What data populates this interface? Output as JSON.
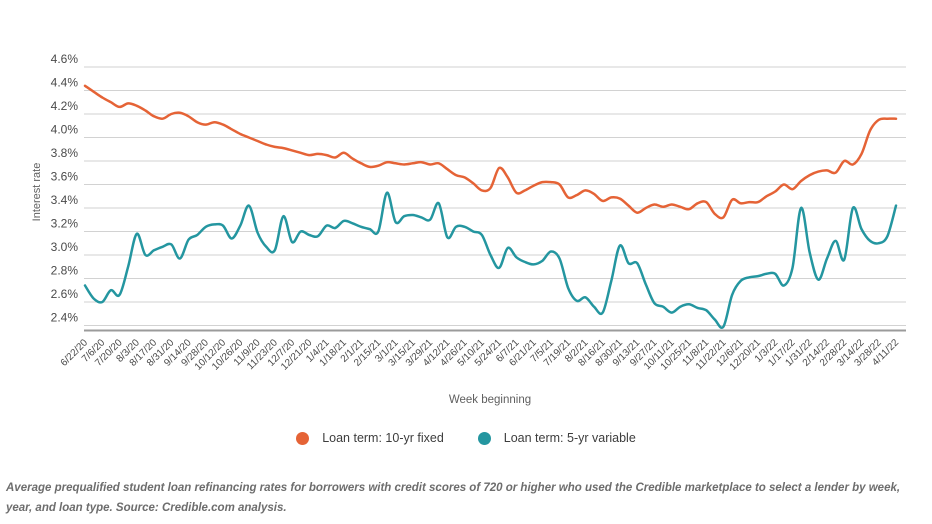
{
  "chart_data": {
    "type": "line",
    "title": "",
    "xlabel": "Week beginning",
    "ylabel": "Interest rate",
    "y_tick_labels": [
      "4.6%",
      "4.4%",
      "4.2%",
      "4.0%",
      "3.8%",
      "3.6%",
      "3.4%",
      "3.2%",
      "3.0%",
      "2.8%",
      "2.6%",
      "2.4%"
    ],
    "y_tick_values": [
      4.6,
      4.4,
      4.2,
      4.0,
      3.8,
      3.6,
      3.4,
      3.2,
      3.0,
      2.8,
      2.6,
      2.4
    ],
    "ylim": [
      2.4,
      4.6
    ],
    "grid": "horizontal",
    "legend_position": "bottom",
    "x_cadence": "weekly points, axis labeled every 2 weeks",
    "x_tick_labels": [
      "6/22/20",
      "7/6/20",
      "7/20/20",
      "8/3/20",
      "8/17/20",
      "8/31/20",
      "9/14/20",
      "9/28/20",
      "10/12/20",
      "10/26/20",
      "11/9/20",
      "11/23/20",
      "12/7/20",
      "12/21/20",
      "1/4/21",
      "1/18/21",
      "2/1/21",
      "2/15/21",
      "3/1/21",
      "3/15/21",
      "3/29/21",
      "4/12/21",
      "4/26/21",
      "5/10/21",
      "5/24/21",
      "6/7/21",
      "6/21/21",
      "7/5/21",
      "7/19/21",
      "8/2/21",
      "8/16/21",
      "8/30/21",
      "9/13/21",
      "9/27/21",
      "10/11/21",
      "10/25/21",
      "11/8/21",
      "11/22/21",
      "12/6/21",
      "12/20/21",
      "1/3/22",
      "1/17/22",
      "1/31/22",
      "2/14/22",
      "2/28/22",
      "3/14/22",
      "3/28/22",
      "4/11/22"
    ],
    "series": [
      {
        "name": "Loan term: 10-yr fixed",
        "color": "#E56336",
        "values": [
          4.44,
          4.39,
          4.34,
          4.3,
          4.26,
          4.29,
          4.27,
          4.23,
          4.18,
          4.16,
          4.2,
          4.21,
          4.18,
          4.13,
          4.11,
          4.13,
          4.11,
          4.07,
          4.03,
          4.0,
          3.97,
          3.94,
          3.92,
          3.91,
          3.89,
          3.87,
          3.85,
          3.86,
          3.85,
          3.83,
          3.87,
          3.82,
          3.78,
          3.75,
          3.76,
          3.79,
          3.78,
          3.77,
          3.78,
          3.79,
          3.77,
          3.78,
          3.73,
          3.68,
          3.66,
          3.61,
          3.55,
          3.57,
          3.74,
          3.66,
          3.53,
          3.55,
          3.59,
          3.62,
          3.62,
          3.6,
          3.49,
          3.51,
          3.55,
          3.52,
          3.46,
          3.49,
          3.48,
          3.42,
          3.36,
          3.4,
          3.43,
          3.41,
          3.43,
          3.41,
          3.39,
          3.44,
          3.45,
          3.35,
          3.32,
          3.47,
          3.44,
          3.45,
          3.45,
          3.5,
          3.54,
          3.6,
          3.56,
          3.63,
          3.68,
          3.71,
          3.72,
          3.7,
          3.8,
          3.77,
          3.86,
          4.06,
          4.15,
          4.16,
          4.16
        ]
      },
      {
        "name": "Loan term: 5-yr variable",
        "color": "#2496A0",
        "values": [
          2.74,
          2.63,
          2.6,
          2.7,
          2.66,
          2.9,
          3.18,
          3.0,
          3.04,
          3.07,
          3.09,
          2.97,
          3.13,
          3.17,
          3.24,
          3.26,
          3.25,
          3.14,
          3.25,
          3.42,
          3.19,
          3.07,
          3.04,
          3.33,
          3.11,
          3.2,
          3.17,
          3.16,
          3.25,
          3.23,
          3.29,
          3.27,
          3.24,
          3.22,
          3.2,
          3.53,
          3.28,
          3.33,
          3.34,
          3.32,
          3.3,
          3.44,
          3.15,
          3.24,
          3.24,
          3.2,
          3.17,
          3.0,
          2.89,
          3.06,
          2.98,
          2.94,
          2.92,
          2.95,
          3.03,
          2.97,
          2.72,
          2.61,
          2.64,
          2.56,
          2.51,
          2.78,
          3.08,
          2.93,
          2.93,
          2.75,
          2.59,
          2.56,
          2.51,
          2.56,
          2.58,
          2.55,
          2.53,
          2.45,
          2.39,
          2.66,
          2.78,
          2.81,
          2.82,
          2.84,
          2.84,
          2.74,
          2.89,
          3.4,
          3.02,
          2.79,
          2.97,
          3.12,
          2.96,
          3.4,
          3.22,
          3.12,
          3.1,
          3.16,
          3.42
        ]
      }
    ]
  },
  "caption": {
    "text": "Average prequalified student loan refinancing rates for borrowers with credit scores of 720 or higher who used the Credible marketplace to select a lender by week, year, and loan type. Source: Credible.com analysis."
  },
  "style_colors": {
    "gridline": "#d2d2d2",
    "axis_line": "#9b9b9b",
    "tick_text": "#4a4a4a",
    "axis_title_text": "#5f5f5f"
  }
}
